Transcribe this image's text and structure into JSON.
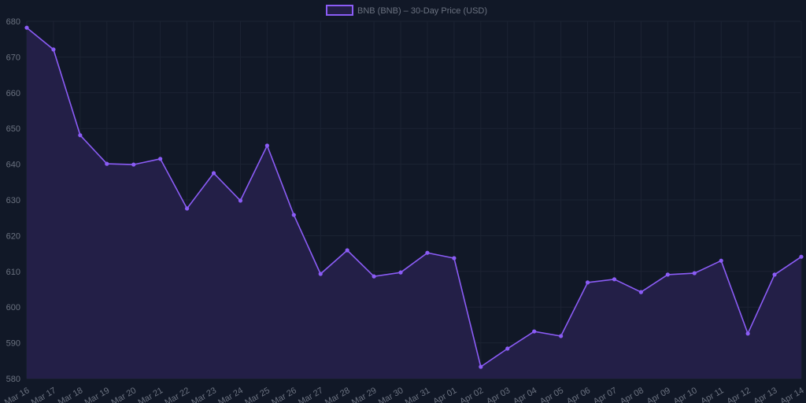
{
  "chart_data": {
    "type": "area",
    "title": "",
    "legend": {
      "label": "BNB (BNB) – 30-Day Price (USD)",
      "placement": "top-center"
    },
    "xlabel": "",
    "ylabel": "",
    "ylim": [
      580,
      680
    ],
    "yticks": [
      580,
      590,
      600,
      610,
      620,
      630,
      640,
      650,
      660,
      670,
      680
    ],
    "grid": true,
    "categories": [
      "Mar 16",
      "Mar 17",
      "Mar 18",
      "Mar 19",
      "Mar 20",
      "Mar 21",
      "Mar 22",
      "Mar 23",
      "Mar 24",
      "Mar 25",
      "Mar 26",
      "Mar 27",
      "Mar 28",
      "Mar 29",
      "Mar 30",
      "Mar 31",
      "Apr 01",
      "Apr 02",
      "Apr 03",
      "Apr 04",
      "Apr 05",
      "Apr 06",
      "Apr 07",
      "Apr 08",
      "Apr 09",
      "Apr 10",
      "Apr 11",
      "Apr 12",
      "Apr 13",
      "Apr 14"
    ],
    "series": [
      {
        "name": "BNB (BNB) – 30-Day Price (USD)",
        "values": [
          678.2,
          672.1,
          648.1,
          640.1,
          639.9,
          641.5,
          627.6,
          637.5,
          629.8,
          645.2,
          625.8,
          609.3,
          615.9,
          608.6,
          609.7,
          615.2,
          613.7,
          583.3,
          588.4,
          593.2,
          591.9,
          606.9,
          607.8,
          604.2,
          609.1,
          609.5,
          613.0,
          592.6,
          609.1,
          614.1
        ]
      }
    ],
    "colors": {
      "line": "#8b5cf6",
      "fill": "#231f47",
      "background": "#111827",
      "grid": "#1c2333",
      "text": "#6b7280"
    }
  }
}
